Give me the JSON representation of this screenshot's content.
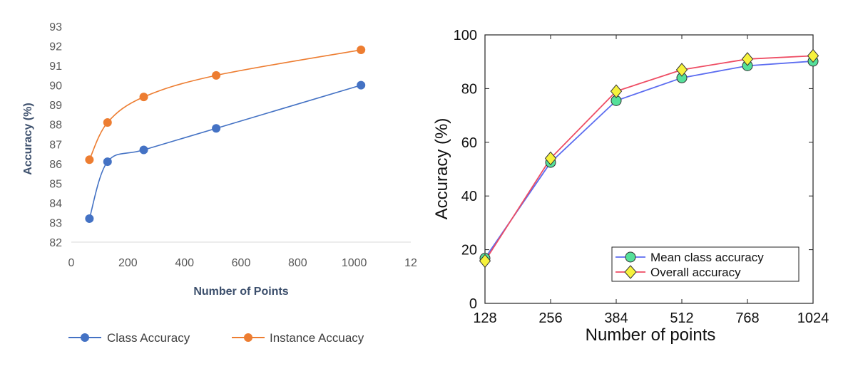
{
  "chart_data": [
    {
      "type": "line",
      "xlabel": "Number of Points",
      "ylabel": "Accuracy (%)",
      "xlim": [
        0,
        1200
      ],
      "ylim": [
        82,
        93
      ],
      "x_ticks": [
        "0",
        "200",
        "400",
        "600",
        "800",
        "1000",
        "12"
      ],
      "y_ticks": [
        "82",
        "83",
        "84",
        "85",
        "86",
        "87",
        "88",
        "89",
        "90",
        "91",
        "92",
        "93"
      ],
      "legend_position": "bottom",
      "grid": false,
      "series": [
        {
          "name": "Class Accuracy",
          "color": "#4472c4",
          "x": [
            64,
            128,
            256,
            512,
            1024
          ],
          "values": [
            83.2,
            86.1,
            86.7,
            87.8,
            90.0
          ]
        },
        {
          "name": "Instance Accuacy",
          "color": "#ed7d31",
          "x": [
            64,
            128,
            256,
            512,
            1024
          ],
          "values": [
            86.2,
            88.1,
            89.4,
            90.5,
            91.8
          ]
        }
      ]
    },
    {
      "type": "line",
      "xlabel": "Number of points",
      "ylabel": "Accuracy (%)",
      "categories": [
        "128",
        "256",
        "384",
        "512",
        "768",
        "1024"
      ],
      "ylim": [
        0,
        100
      ],
      "y_ticks": [
        "0",
        "20",
        "40",
        "60",
        "80",
        "100"
      ],
      "legend_position": "bottom-right",
      "grid": false,
      "series": [
        {
          "name": "Mean class accuracy",
          "color": "#5b6cf0",
          "marker_color": "#55e09a",
          "values": [
            16.8,
            52.5,
            75.5,
            84.0,
            88.5,
            90.2
          ]
        },
        {
          "name": "Overall accuracy",
          "color": "#ee4c63",
          "marker_color": "#f6f23c",
          "values": [
            15.8,
            54.0,
            79.0,
            87.0,
            91.0,
            92.2
          ]
        }
      ]
    }
  ]
}
